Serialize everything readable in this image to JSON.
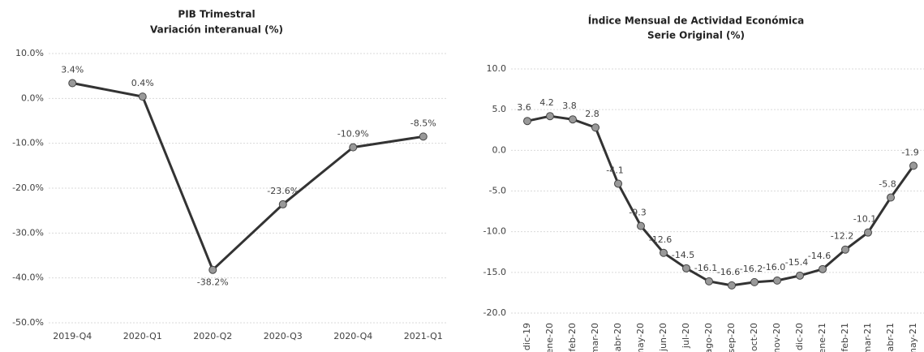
{
  "chart_data": [
    {
      "type": "line",
      "title": "PIB Trimestral",
      "subtitle": "Variación interanual (%)",
      "categories": [
        "2019-Q4",
        "2020-Q1",
        "2020-Q2",
        "2020-Q3",
        "2020-Q4",
        "2021-Q1"
      ],
      "values": [
        3.4,
        0.4,
        -38.2,
        -23.6,
        -10.9,
        -8.5
      ],
      "value_labels": [
        "3.4%",
        "0.4%",
        "-38.2%",
        "-23.6%",
        "-10.9%",
        "-8.5%"
      ],
      "color": "#333333",
      "ylim": [
        -50,
        10
      ],
      "yticks": [
        {
          "value": 10,
          "label": "10.0%"
        },
        {
          "value": 0,
          "label": "0.0%"
        },
        {
          "value": -10,
          "label": "-10.0%"
        },
        {
          "value": -20,
          "label": "-20.0%"
        },
        {
          "value": -30,
          "label": "-30.0%"
        },
        {
          "value": -40,
          "label": "-40.0%"
        },
        {
          "value": -50,
          "label": "-50.0%"
        }
      ],
      "grid": true
    },
    {
      "type": "line",
      "title": "Índice Mensual de Actividad Económica",
      "subtitle": "Serie Original (%)",
      "categories": [
        "dic-19",
        "ene-20",
        "feb-20",
        "mar-20",
        "abr-20",
        "may-20",
        "jun-20",
        "jul-20",
        "ago-20",
        "sep-20",
        "oct-20",
        "nov-20",
        "dic-20",
        "ene-21",
        "feb-21",
        "mar-21",
        "abr-21",
        "may-21"
      ],
      "values": [
        3.6,
        4.2,
        3.8,
        2.8,
        -4.1,
        -9.3,
        -12.6,
        -14.5,
        -16.1,
        -16.6,
        -16.2,
        -16.0,
        -15.4,
        -14.6,
        -12.2,
        -10.1,
        -5.8,
        -1.9
      ],
      "value_labels": [
        "3.6",
        "4.2",
        "3.8",
        "2.8",
        "-4.1",
        "-9.3",
        "-12.6",
        "-14.5",
        "-16.1",
        "-16.6",
        "-16.2",
        "-16.0",
        "-15.4",
        "-14.6",
        "-12.2",
        "-10.1",
        "-5.8",
        "-1.9"
      ],
      "color": "#333333",
      "ylim": [
        -20,
        10
      ],
      "yticks": [
        {
          "value": 10,
          "label": "10.0"
        },
        {
          "value": 5,
          "label": "5.0"
        },
        {
          "value": 0,
          "label": "0.0"
        },
        {
          "value": -5,
          "label": "-5.0"
        },
        {
          "value": -10,
          "label": "-10.0"
        },
        {
          "value": -15,
          "label": "-15.0"
        },
        {
          "value": -20,
          "label": "-20.0"
        }
      ],
      "grid": true
    }
  ]
}
